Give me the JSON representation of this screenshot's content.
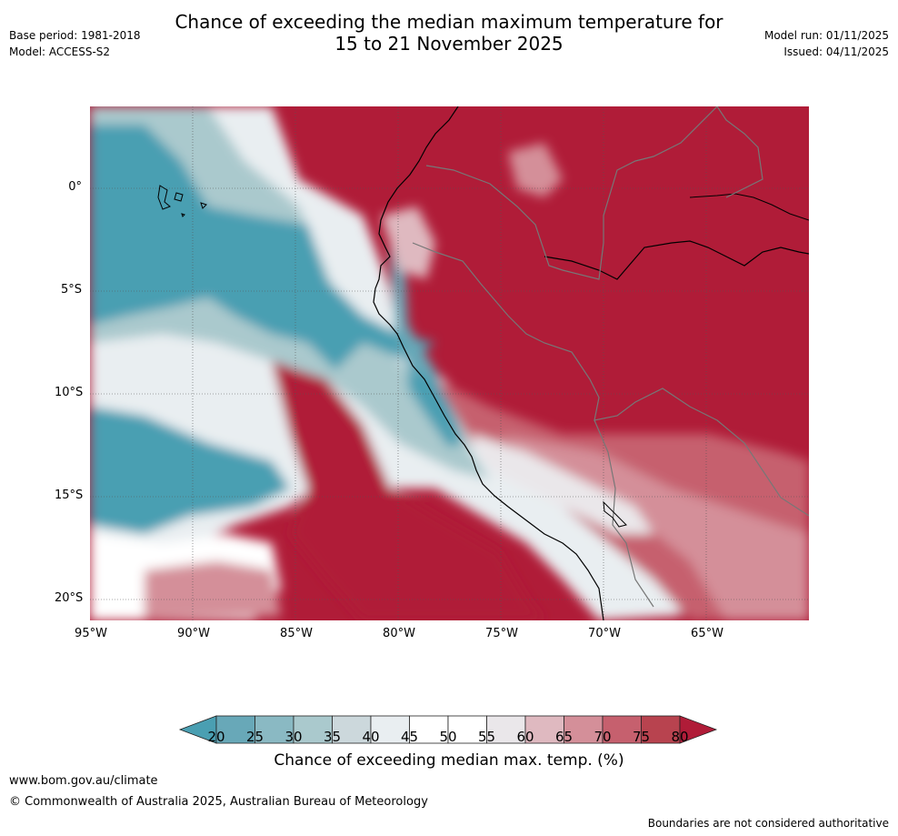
{
  "title_line1": "Chance of exceeding the median maximum temperature for",
  "title_line2": "15 to 21 November 2025",
  "header_left": {
    "base_period": "Base period: 1981-2018",
    "model": "Model: ACCESS-S2"
  },
  "header_right": {
    "model_run": "Model run: 01/11/2025",
    "issued": "Issued: 04/11/2025"
  },
  "latitude_labels": [
    "0°",
    "5°S",
    "10°S",
    "15°S",
    "20°S"
  ],
  "longitude_labels": [
    "95°W",
    "90°W",
    "85°W",
    "80°W",
    "75°W",
    "70°W",
    "65°W"
  ],
  "colorbar": {
    "ticks": [
      "20",
      "25",
      "30",
      "35",
      "40",
      "45",
      "50",
      "55",
      "60",
      "65",
      "70",
      "75",
      "80"
    ],
    "colors": [
      "#4a9fb2",
      "#68a8b8",
      "#8ab9c3",
      "#aac9cd",
      "#ccd8dc",
      "#e9eef1",
      "#ffffff",
      "#ffffff",
      "#eae7ea",
      "#dfb9c0",
      "#d48f99",
      "#c6606e",
      "#b8434f",
      "#b01c38"
    ],
    "label": "Chance of exceeding median max. temp. (%)"
  },
  "footer": {
    "url": "www.bom.gov.au/climate",
    "copyright": "© Commonwealth of Australia 2025, Australian Bureau of Meteorology",
    "disclaimer": "Boundaries are not considered authoritative"
  }
}
